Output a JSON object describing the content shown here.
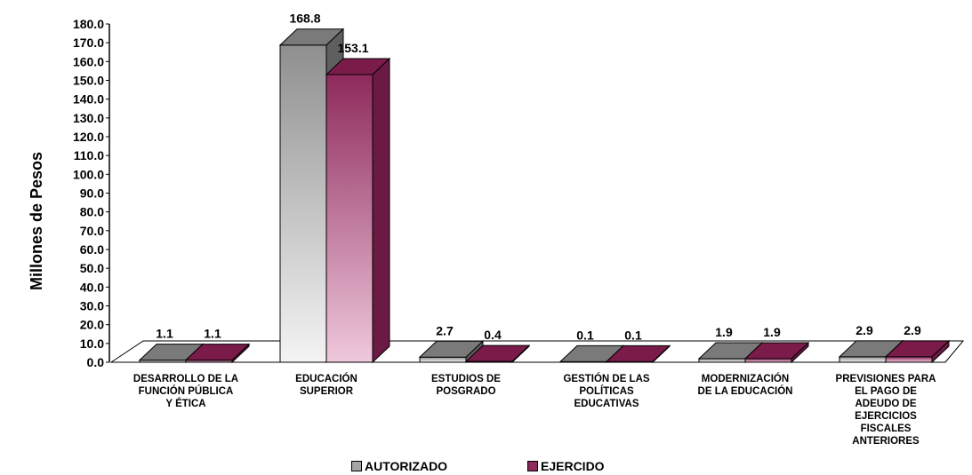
{
  "chart_data": {
    "type": "bar",
    "ylabel": "Millones de Pesos",
    "ylim": [
      0,
      180
    ],
    "ytick_labels": [
      "0.0",
      "10.0",
      "20.0",
      "30.0",
      "40.0",
      "50.0",
      "60.0",
      "70.0",
      "80.0",
      "90.0",
      "100.0",
      "110.0",
      "120.0",
      "130.0",
      "140.0",
      "150.0",
      "160.0",
      "170.0",
      "180.0"
    ],
    "categories": [
      "DESARROLLO DE LA\nFUNCIÓN PÚBLICA\nY ÉTICA",
      "EDUCACIÓN\nSUPERIOR",
      "ESTUDIOS DE\nPOSGRADO",
      "GESTIÓN DE LAS\nPOLÍTICAS\nEDUCATIVAS",
      "MODERNIZACIÓN\nDE LA EDUCACIÓN",
      "PREVISIONES PARA\nEL PAGO DE\nADEUDO DE\nEJERCICIOS\nFISCALES\nANTERIORES"
    ],
    "series": [
      {
        "name": "AUTORIZADO",
        "values": [
          1.1,
          168.8,
          2.7,
          0.1,
          1.9,
          2.9
        ],
        "labels": [
          "1.1",
          "168.8",
          "2.7",
          "0.1",
          "1.9",
          "2.9"
        ],
        "color": "#a6a6a6"
      },
      {
        "name": "EJERCIDO",
        "values": [
          1.1,
          153.1,
          0.4,
          0.1,
          1.9,
          2.9
        ],
        "labels": [
          "1.1",
          "153.1",
          "0.4",
          "0.1",
          "1.9",
          "2.9"
        ],
        "color": "#8e2a5c"
      }
    ],
    "legend_position": "bottom",
    "grid": false
  }
}
